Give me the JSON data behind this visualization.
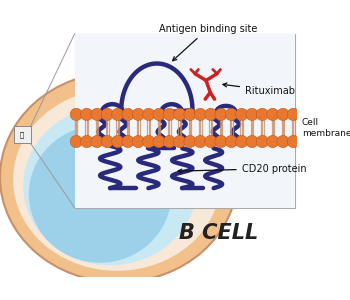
{
  "bg_color": "#ffffff",
  "cell_outer_color": "#f2c08a",
  "cell_inner_color": "#8ecae6",
  "cell_inner_color2": "#c8e8f4",
  "box_bg": "#f8f9fb",
  "phospholipid_head_color": "#e87830",
  "phospholipid_head_edge": "#c05818",
  "tail_color": "#d4956a",
  "cd20_color": "#2a2a7c",
  "rituximab_color": "#cc2222",
  "arrow_color": "#111111",
  "label_color": "#111111",
  "bcell_label": "B CELL",
  "bcell_fontsize": 15,
  "title_antigen": "Antigen binding site",
  "title_rituximab": "Rituximab",
  "title_membrane": "Cell\nmembrane",
  "title_cd20": "CD20 protein",
  "annotation_fontsize": 7.0,
  "annotation_fontsize_small": 6.5
}
